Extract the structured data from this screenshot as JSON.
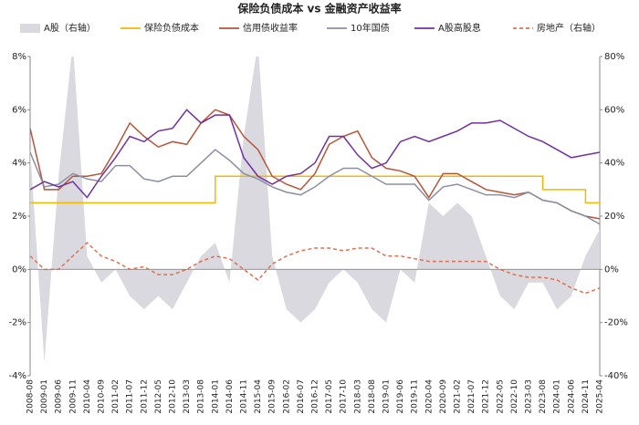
{
  "chart_data": {
    "type": "line",
    "title": "保险负债成本 vs 金融资产收益率",
    "categories": [
      "2008-08",
      "2009-01",
      "2009-06",
      "2009-11",
      "2010-04",
      "2010-09",
      "2011-02",
      "2011-07",
      "2011-12",
      "2012-05",
      "2012-10",
      "2013-03",
      "2013-08",
      "2014-01",
      "2014-06",
      "2014-11",
      "2015-04",
      "2015-09",
      "2016-02",
      "2016-07",
      "2016-12",
      "2017-05",
      "2017-10",
      "2018-03",
      "2018-08",
      "2019-01",
      "2019-06",
      "2019-11",
      "2020-04",
      "2020-09",
      "2021-02",
      "2021-07",
      "2021-12",
      "2022-05",
      "2022-10",
      "2023-03",
      "2023-08",
      "2024-01",
      "2024-06",
      "2024-11",
      "2025-04"
    ],
    "ylim": [
      -4,
      8
    ],
    "yticks": [
      {
        "value": -4,
        "label": "-4%"
      },
      {
        "value": -2,
        "label": "-2%"
      },
      {
        "value": 0,
        "label": "0%"
      },
      {
        "value": 2,
        "label": "2%"
      },
      {
        "value": 4,
        "label": "4%"
      },
      {
        "value": 6,
        "label": "6%"
      },
      {
        "value": 8,
        "label": "8%"
      }
    ],
    "y2lim": [
      -40,
      80
    ],
    "y2ticks": [
      {
        "value": -40,
        "label": "-40%"
      },
      {
        "value": -20,
        "label": "-20%"
      },
      {
        "value": 0,
        "label": "0%"
      },
      {
        "value": 20,
        "label": "20%"
      },
      {
        "value": 40,
        "label": "40%"
      },
      {
        "value": 60,
        "label": "60%"
      },
      {
        "value": 80,
        "label": "80%"
      }
    ],
    "series": [
      {
        "name": "A股（右轴）",
        "color": "#d9d9df",
        "style": "area",
        "axis": "y2",
        "values": [
          45,
          -35,
          35,
          85,
          5,
          -5,
          0,
          -10,
          -15,
          -10,
          -15,
          -5,
          5,
          10,
          -5,
          50,
          85,
          5,
          -15,
          -20,
          -15,
          -5,
          0,
          -5,
          -15,
          -20,
          0,
          -5,
          25,
          20,
          25,
          20,
          5,
          -10,
          -15,
          -5,
          -5,
          -15,
          -10,
          5,
          15
        ]
      },
      {
        "name": "保险负债成本",
        "color": "#f5b800",
        "style": "step",
        "values": [
          2.5,
          2.5,
          2.5,
          2.5,
          2.5,
          2.5,
          2.5,
          2.5,
          2.5,
          2.5,
          2.5,
          2.5,
          2.5,
          3.5,
          3.5,
          3.5,
          3.5,
          3.5,
          3.5,
          3.5,
          3.5,
          3.5,
          3.5,
          3.5,
          3.5,
          3.5,
          3.5,
          3.5,
          3.5,
          3.5,
          3.5,
          3.5,
          3.5,
          3.5,
          3.5,
          3.5,
          3.0,
          3.0,
          3.0,
          2.5,
          2.5
        ]
      },
      {
        "name": "信用债收益率",
        "color": "#b5553a",
        "style": "solid",
        "values": [
          5.3,
          3.0,
          3.0,
          3.5,
          3.5,
          3.6,
          4.5,
          5.5,
          5.0,
          4.6,
          4.8,
          4.7,
          5.5,
          6.0,
          5.8,
          5.0,
          4.5,
          3.5,
          3.2,
          3.0,
          3.6,
          4.7,
          5.0,
          5.2,
          4.2,
          3.8,
          3.7,
          3.5,
          2.7,
          3.6,
          3.6,
          3.3,
          3.0,
          2.9,
          2.8,
          2.9,
          2.6,
          2.5,
          2.2,
          2.0,
          1.9
        ]
      },
      {
        "name": "10年国债",
        "color": "#8c8fa3",
        "style": "solid",
        "values": [
          4.4,
          3.1,
          3.2,
          3.6,
          3.4,
          3.3,
          3.9,
          3.9,
          3.4,
          3.3,
          3.5,
          3.5,
          4.0,
          4.5,
          4.1,
          3.6,
          3.4,
          3.1,
          2.9,
          2.8,
          3.1,
          3.5,
          3.8,
          3.8,
          3.5,
          3.2,
          3.2,
          3.2,
          2.6,
          3.1,
          3.2,
          3.0,
          2.8,
          2.8,
          2.7,
          2.9,
          2.6,
          2.5,
          2.2,
          2.0,
          1.7
        ]
      },
      {
        "name": "A股高股息",
        "color": "#7030a0",
        "style": "solid",
        "values": [
          3.0,
          3.3,
          3.1,
          3.3,
          2.7,
          3.5,
          4.2,
          5.0,
          4.8,
          5.2,
          5.3,
          6.0,
          5.5,
          5.8,
          5.8,
          4.2,
          3.5,
          3.2,
          3.5,
          3.6,
          4.0,
          5.0,
          5.0,
          4.3,
          3.8,
          4.0,
          4.8,
          5.0,
          4.8,
          5.0,
          5.2,
          5.5,
          5.5,
          5.6,
          5.3,
          5.0,
          4.8,
          4.5,
          4.2,
          4.3,
          4.4
        ]
      },
      {
        "name": "房地产（右轴）",
        "color": "#e07050",
        "style": "dashed",
        "axis": "y2",
        "values": [
          5,
          0,
          0,
          5,
          10,
          5,
          3,
          0,
          1,
          -2,
          -2,
          0,
          3,
          5,
          4,
          0,
          -4,
          2,
          5,
          7,
          8,
          8,
          7,
          8,
          8,
          5,
          5,
          4,
          3,
          3,
          3,
          3,
          3,
          0,
          -2,
          -3,
          -3,
          -4,
          -7,
          -9,
          -7
        ]
      }
    ]
  }
}
